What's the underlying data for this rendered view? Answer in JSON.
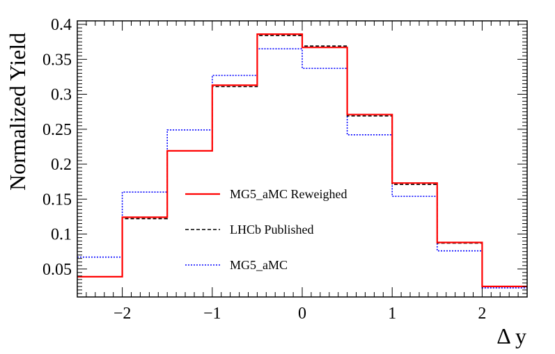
{
  "chart_data": {
    "type": "histogram",
    "xlabel": "Δ y",
    "ylabel": "Normalized Yield",
    "xlim": [
      -2.5,
      2.5
    ],
    "ylim": [
      0.01,
      0.405
    ],
    "x_ticks": [
      {
        "value": -2,
        "label": "−2"
      },
      {
        "value": -1,
        "label": "−1"
      },
      {
        "value": 0,
        "label": "0"
      },
      {
        "value": 1,
        "label": "1"
      },
      {
        "value": 2,
        "label": "2"
      }
    ],
    "y_ticks": [
      {
        "value": 0.05,
        "label": "0.05"
      },
      {
        "value": 0.1,
        "label": "0.1"
      },
      {
        "value": 0.15,
        "label": "0.15"
      },
      {
        "value": 0.2,
        "label": "0.2"
      },
      {
        "value": 0.25,
        "label": "0.25"
      },
      {
        "value": 0.3,
        "label": "0.3"
      },
      {
        "value": 0.35,
        "label": "0.35"
      },
      {
        "value": 0.4,
        "label": "0.4"
      }
    ],
    "bin_edges": [
      -2.5,
      -2.0,
      -1.5,
      -1.0,
      -0.5,
      0.0,
      0.5,
      1.0,
      1.5,
      2.0,
      2.5
    ],
    "series": [
      {
        "name": "MG5_aMC",
        "color": "#0000ff",
        "style": "dotted",
        "values": [
          0.067,
          0.16,
          0.249,
          0.327,
          0.365,
          0.337,
          0.242,
          0.154,
          0.076,
          0.023
        ]
      },
      {
        "name": "LHCb Published",
        "color": "#000000",
        "style": "dashed",
        "values": [
          0.039,
          0.122,
          0.219,
          0.311,
          0.384,
          0.369,
          0.269,
          0.171,
          0.087,
          0.025
        ]
      },
      {
        "name": "MG5_aMC Reweighed",
        "color": "#ff0000",
        "style": "solid",
        "values": [
          0.039,
          0.124,
          0.219,
          0.313,
          0.386,
          0.367,
          0.271,
          0.173,
          0.088,
          0.025
        ]
      }
    ],
    "legend_order": [
      "MG5_aMC Reweighed",
      "LHCb Published",
      "MG5_aMC"
    ],
    "legend_position": "center"
  }
}
